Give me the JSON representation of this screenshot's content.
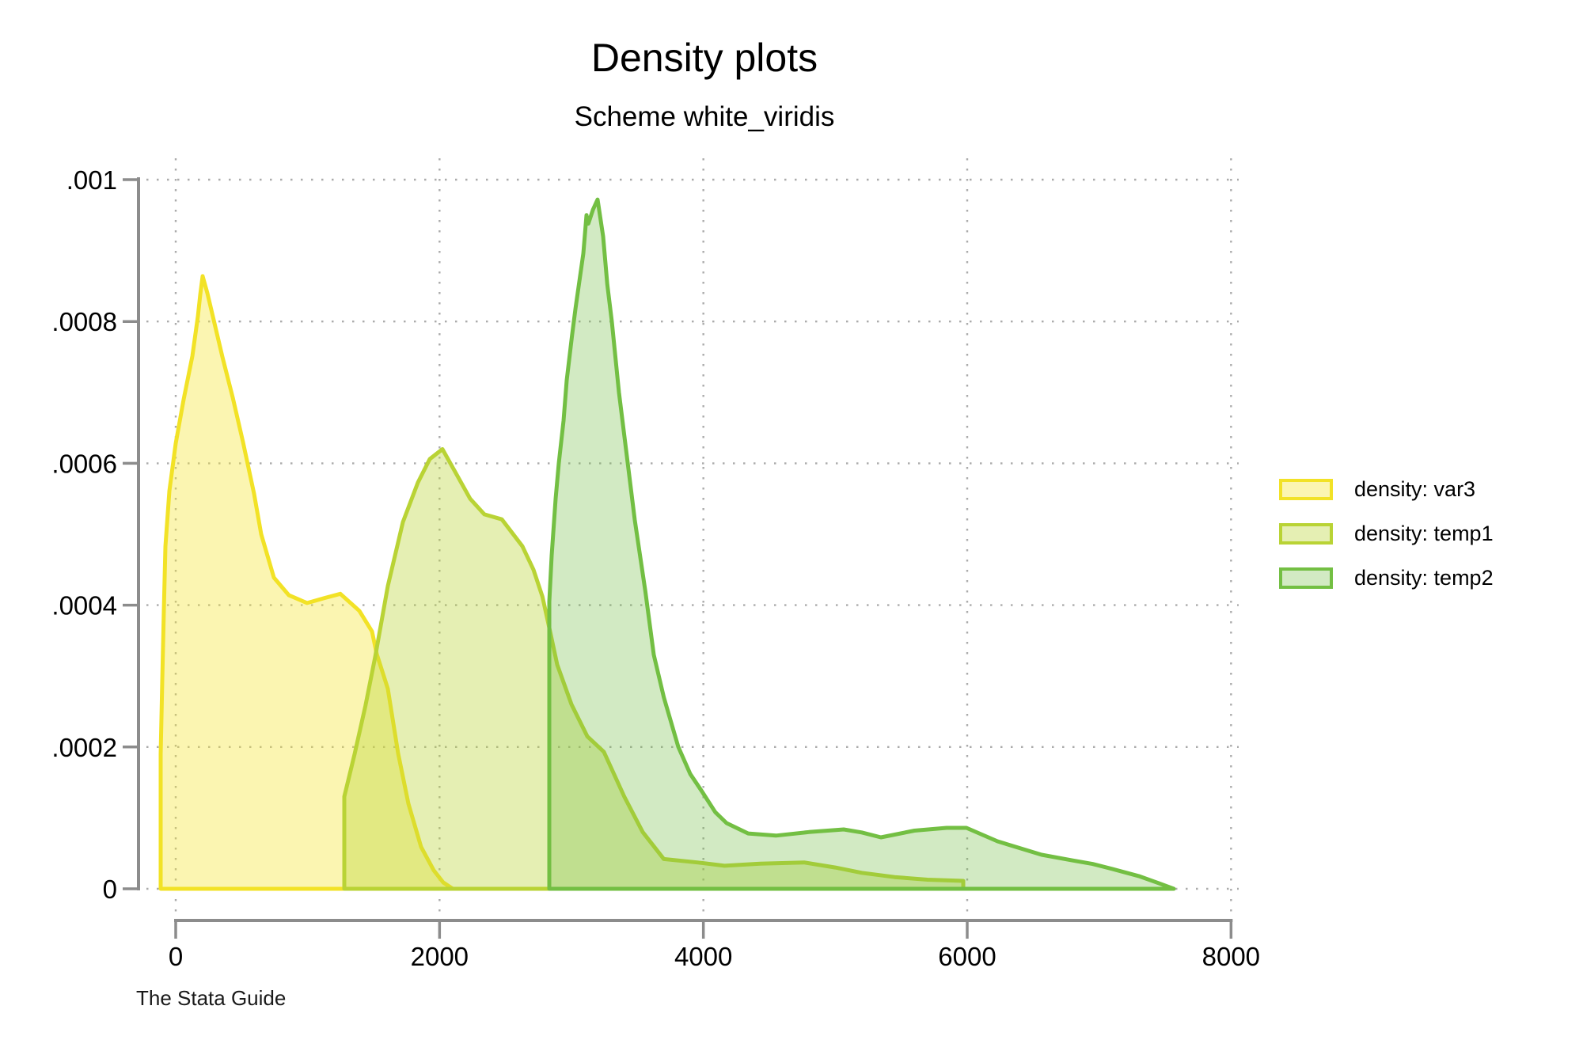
{
  "header": {
    "title": "Density plots",
    "subtitle": "Scheme white_viridis"
  },
  "footer": {
    "note": "The Stata Guide"
  },
  "colors": {
    "axis": "#8c8c8c",
    "grid": "#ababab",
    "text": "#000000",
    "background": "#ffffff"
  },
  "chart_data": {
    "type": "area",
    "title": "Density plots",
    "subtitle": "Scheme white_viridis",
    "xlabel": "",
    "ylabel": "",
    "xlim": [
      -200,
      8200
    ],
    "ylim": [
      0,
      0.001
    ],
    "grid": "dotted",
    "legend_position": "right",
    "x_ticks": [
      0,
      2000,
      4000,
      6000,
      8000
    ],
    "x_tick_labels": [
      "0",
      "2000",
      "4000",
      "6000",
      "8000"
    ],
    "y_ticks": [
      0,
      0.0002,
      0.0004,
      0.0006,
      0.0008,
      0.001
    ],
    "y_tick_labels": [
      "0",
      ".0002",
      ".0004",
      ".0006",
      ".0008",
      ".001"
    ],
    "series": [
      {
        "label": "density: var3",
        "line_color": "#f2e226",
        "fill_color": "#f5e432",
        "fill_opacity": 0.38,
        "points": [
          [
            -114,
            0
          ],
          [
            -114,
            0.00019
          ],
          [
            -102,
            0.000294
          ],
          [
            -90,
            0.000392
          ],
          [
            -78,
            0.000483
          ],
          [
            -48,
            0.000561
          ],
          [
            0,
            0.000628
          ],
          [
            60,
            0.00069
          ],
          [
            126,
            0.000751
          ],
          [
            168,
            0.000807
          ],
          [
            186,
            0.000838
          ],
          [
            204,
            0.000864
          ],
          [
            240,
            0.00084
          ],
          [
            354,
            0.00075
          ],
          [
            432,
            0.000693
          ],
          [
            510,
            0.00063
          ],
          [
            594,
            0.000557
          ],
          [
            648,
            0.0005
          ],
          [
            744,
            0.000439
          ],
          [
            858,
            0.000414
          ],
          [
            996,
            0.000403
          ],
          [
            1128,
            0.00041
          ],
          [
            1248,
            0.000416
          ],
          [
            1392,
            0.000392
          ],
          [
            1488,
            0.000363
          ],
          [
            1524,
            0.000331
          ],
          [
            1608,
            0.000282
          ],
          [
            1686,
            0.000191
          ],
          [
            1764,
            0.00012
          ],
          [
            1860,
            5.9e-05
          ],
          [
            1956,
            2.6e-05
          ],
          [
            2028,
            8.9e-06
          ],
          [
            2100,
            0
          ]
        ]
      },
      {
        "label": "density: temp1",
        "line_color": "#b9d335",
        "fill_color": "#bad437",
        "fill_opacity": 0.38,
        "points": [
          [
            1278,
            0
          ],
          [
            1278,
            0.00013
          ],
          [
            1356,
            0.00019
          ],
          [
            1438,
            0.000258
          ],
          [
            1512,
            0.000327
          ],
          [
            1608,
            0.000427
          ],
          [
            1722,
            0.000517
          ],
          [
            1836,
            0.000573
          ],
          [
            1926,
            0.000606
          ],
          [
            2022,
            0.00062
          ],
          [
            2130,
            0.000584
          ],
          [
            2232,
            0.00055
          ],
          [
            2340,
            0.000528
          ],
          [
            2472,
            0.000521
          ],
          [
            2628,
            0.000483
          ],
          [
            2712,
            0.00045
          ],
          [
            2780,
            0.000412
          ],
          [
            2832,
            0.000368
          ],
          [
            2892,
            0.000316
          ],
          [
            3000,
            0.00026
          ],
          [
            3120,
            0.000215
          ],
          [
            3246,
            0.000193
          ],
          [
            3400,
            0.00013
          ],
          [
            3540,
            8e-05
          ],
          [
            3700,
            4.2e-05
          ],
          [
            3960,
            3.7e-05
          ],
          [
            4160,
            3.25e-05
          ],
          [
            4430,
            3.55e-05
          ],
          [
            4764,
            3.72e-05
          ],
          [
            5000,
            3e-05
          ],
          [
            5200,
            2.25e-05
          ],
          [
            5450,
            1.65e-05
          ],
          [
            5700,
            1.28e-05
          ],
          [
            5970,
            1.12e-05
          ],
          [
            5970,
            0
          ]
        ]
      },
      {
        "label": "density: temp2",
        "line_color": "#73bf43",
        "fill_color": "#73bf43",
        "fill_opacity": 0.32,
        "points": [
          [
            2832,
            0
          ],
          [
            2832,
            0.000405
          ],
          [
            2850,
            0.00047
          ],
          [
            2880,
            0.00055
          ],
          [
            2904,
            0.0006
          ],
          [
            2940,
            0.00066
          ],
          [
            2964,
            0.000717
          ],
          [
            3004,
            0.00078
          ],
          [
            3032,
            0.00082
          ],
          [
            3090,
            0.000896
          ],
          [
            3114,
            0.00095
          ],
          [
            3128,
            0.000938
          ],
          [
            3164,
            0.000958
          ],
          [
            3198,
            0.000972
          ],
          [
            3240,
            0.00092
          ],
          [
            3272,
            0.000852
          ],
          [
            3306,
            0.0008
          ],
          [
            3360,
            0.0007
          ],
          [
            3420,
            0.00061
          ],
          [
            3480,
            0.00052
          ],
          [
            3560,
            0.00042
          ],
          [
            3624,
            0.00033
          ],
          [
            3700,
            0.00027
          ],
          [
            3810,
            0.0002
          ],
          [
            3900,
            0.000162
          ],
          [
            3990,
            0.000137
          ],
          [
            4090,
            0.000108
          ],
          [
            4176,
            9.26e-05
          ],
          [
            4340,
            7.8e-05
          ],
          [
            4550,
            7.5e-05
          ],
          [
            4800,
            8e-05
          ],
          [
            5064,
            8.37e-05
          ],
          [
            5200,
            7.95e-05
          ],
          [
            5346,
            7.26e-05
          ],
          [
            5600,
            8.2e-05
          ],
          [
            5844,
            8.59e-05
          ],
          [
            5994,
            8.59e-05
          ],
          [
            6230,
            6.7e-05
          ],
          [
            6564,
            4.8e-05
          ],
          [
            6800,
            4e-05
          ],
          [
            6950,
            3.5e-05
          ],
          [
            7100,
            2.8e-05
          ],
          [
            7300,
            1.8e-05
          ],
          [
            7450,
            8e-06
          ],
          [
            7566,
            0
          ]
        ]
      }
    ]
  }
}
